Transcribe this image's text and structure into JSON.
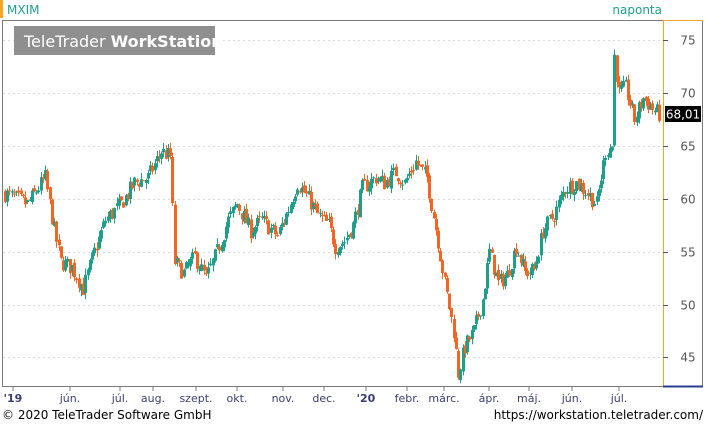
{
  "header": {
    "symbol": "MXIM",
    "period": "naponta",
    "watermark_light": "TeleTrader",
    "watermark_bold": "WorkStation"
  },
  "footer": {
    "copyright": "© 2020 TeleTrader Software GmbH",
    "url": "https://workstation.teletrader.com/"
  },
  "colors": {
    "up": "#1f9e8a",
    "down": "#f26522",
    "accent": "#f5a623",
    "frame": "#7a7a7a",
    "grid": "#dcdcdc",
    "price_tag_bg": "#000000"
  },
  "chart_data": {
    "type": "candlestick",
    "ylim": [
      42.3,
      76.8
    ],
    "y_ticks": [
      45,
      50,
      55,
      60,
      65,
      70,
      75
    ],
    "y_tick_labels": [
      "45",
      "50",
      "55",
      "60",
      "65",
      "70",
      "75"
    ],
    "last_price": 68.01,
    "last_price_label": "68,01",
    "x_tick_labels": [
      "'19",
      "jún.",
      "júl.",
      "aug.",
      "szept.",
      "okt.",
      "nov.",
      "dec.",
      "'20",
      "febr.",
      "márc.",
      "ápr.",
      "máj.",
      "jún.",
      "júl."
    ],
    "x_label_bold": [
      "'19",
      "'20"
    ],
    "bars_count": 294,
    "anchors": [
      [
        0,
        60.5
      ],
      [
        10,
        59.5
      ],
      [
        18,
        62
      ],
      [
        22,
        57
      ],
      [
        25,
        54
      ],
      [
        30,
        53.5
      ],
      [
        35,
        51.5
      ],
      [
        40,
        55
      ],
      [
        45,
        58
      ],
      [
        52,
        59.5
      ],
      [
        58,
        61.5
      ],
      [
        64,
        62
      ],
      [
        70,
        64.5
      ],
      [
        74,
        64
      ],
      [
        75,
        59
      ],
      [
        76,
        54
      ],
      [
        80,
        53
      ],
      [
        85,
        54.5
      ],
      [
        90,
        52.5
      ],
      [
        95,
        55
      ],
      [
        100,
        58
      ],
      [
        104,
        59.5
      ],
      [
        110,
        57
      ],
      [
        115,
        58
      ],
      [
        122,
        56.5
      ],
      [
        127,
        59
      ],
      [
        131,
        61.5
      ],
      [
        136,
        60
      ],
      [
        140,
        58.5
      ],
      [
        145,
        57.5
      ],
      [
        148,
        55.5
      ],
      [
        152,
        56
      ],
      [
        156,
        57.5
      ],
      [
        160,
        61
      ],
      [
        166,
        62
      ],
      [
        170,
        61.5
      ],
      [
        175,
        62.5
      ],
      [
        179,
        61.5
      ],
      [
        184,
        63.5
      ],
      [
        189,
        62
      ],
      [
        191,
        59.5
      ],
      [
        194,
        56
      ],
      [
        197,
        52
      ],
      [
        201,
        47.5
      ],
      [
        203,
        43.5
      ],
      [
        206,
        46
      ],
      [
        210,
        47.5
      ],
      [
        214,
        50.5
      ],
      [
        217,
        55
      ],
      [
        221,
        52
      ],
      [
        225,
        52.8
      ],
      [
        229,
        55.5
      ],
      [
        233,
        53
      ],
      [
        237,
        53.3
      ],
      [
        241,
        57
      ],
      [
        246,
        58.5
      ],
      [
        251,
        61
      ],
      [
        256,
        61.5
      ],
      [
        261,
        60.5
      ],
      [
        265,
        59.5
      ],
      [
        267,
        62
      ],
      [
        269,
        64.5
      ],
      [
        272,
        65
      ],
      [
        273,
        73.5
      ],
      [
        275,
        70
      ],
      [
        278,
        70.5
      ],
      [
        282,
        67.5
      ],
      [
        286,
        69.5
      ],
      [
        290,
        68.5
      ],
      [
        293,
        68
      ]
    ]
  }
}
